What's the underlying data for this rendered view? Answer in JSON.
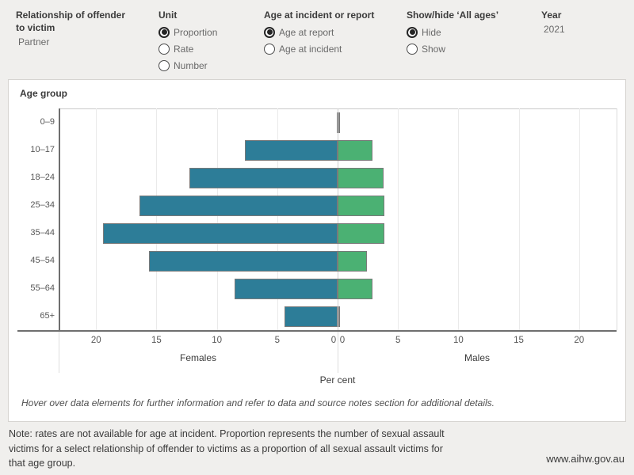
{
  "header": {
    "filters": [
      {
        "label_line1": "Relationship of offender",
        "label_line2": "to victim",
        "value": "Partner"
      },
      {
        "label": "Unit",
        "selected": "Proportion",
        "options": [
          "Proportion",
          "Rate",
          "Number"
        ]
      },
      {
        "label": "Age at incident or report",
        "selected": "Age at report",
        "options": [
          "Age at report",
          "Age at incident"
        ]
      },
      {
        "label": "Show/hide ‘All ages’",
        "selected": "Hide",
        "options": [
          "Hide",
          "Show"
        ]
      },
      {
        "label": "Year",
        "value": "2021"
      }
    ]
  },
  "chart_data": {
    "type": "bar",
    "subtype": "diverging horizontal population pyramid",
    "title": "Age group",
    "categories": [
      "0–9",
      "10–17",
      "18–24",
      "25–34",
      "35–44",
      "45–54",
      "55–64",
      "65+"
    ],
    "series": [
      {
        "name": "Females",
        "side": "left",
        "color": "#2d7d98",
        "values": [
          0,
          7.7,
          12.3,
          16.4,
          19.4,
          15.6,
          8.5,
          4.4
        ]
      },
      {
        "name": "Males",
        "side": "right",
        "color": "#4bb173",
        "values": [
          0,
          2.9,
          3.8,
          3.9,
          3.9,
          2.4,
          2.9,
          0
        ]
      }
    ],
    "xlabel": "Per cent",
    "x_ticks": [
      0,
      5,
      10,
      15,
      20
    ],
    "axis_max": 23.1,
    "bar_border_color": "#7a7a7a",
    "grid": true,
    "legend_position": "none"
  },
  "panel": {
    "hover_note": "Hover over data elements for further information and refer to data and source notes section for additional details."
  },
  "footer": {
    "note_lines": [
      "Note: rates are not available for age at incident. Proportion represents the number of sexual assault",
      "victims for a select relationship of offender to victims as a proportion of all sexual assault victims for",
      "that age group."
    ],
    "url": "www.aihw.gov.au"
  }
}
